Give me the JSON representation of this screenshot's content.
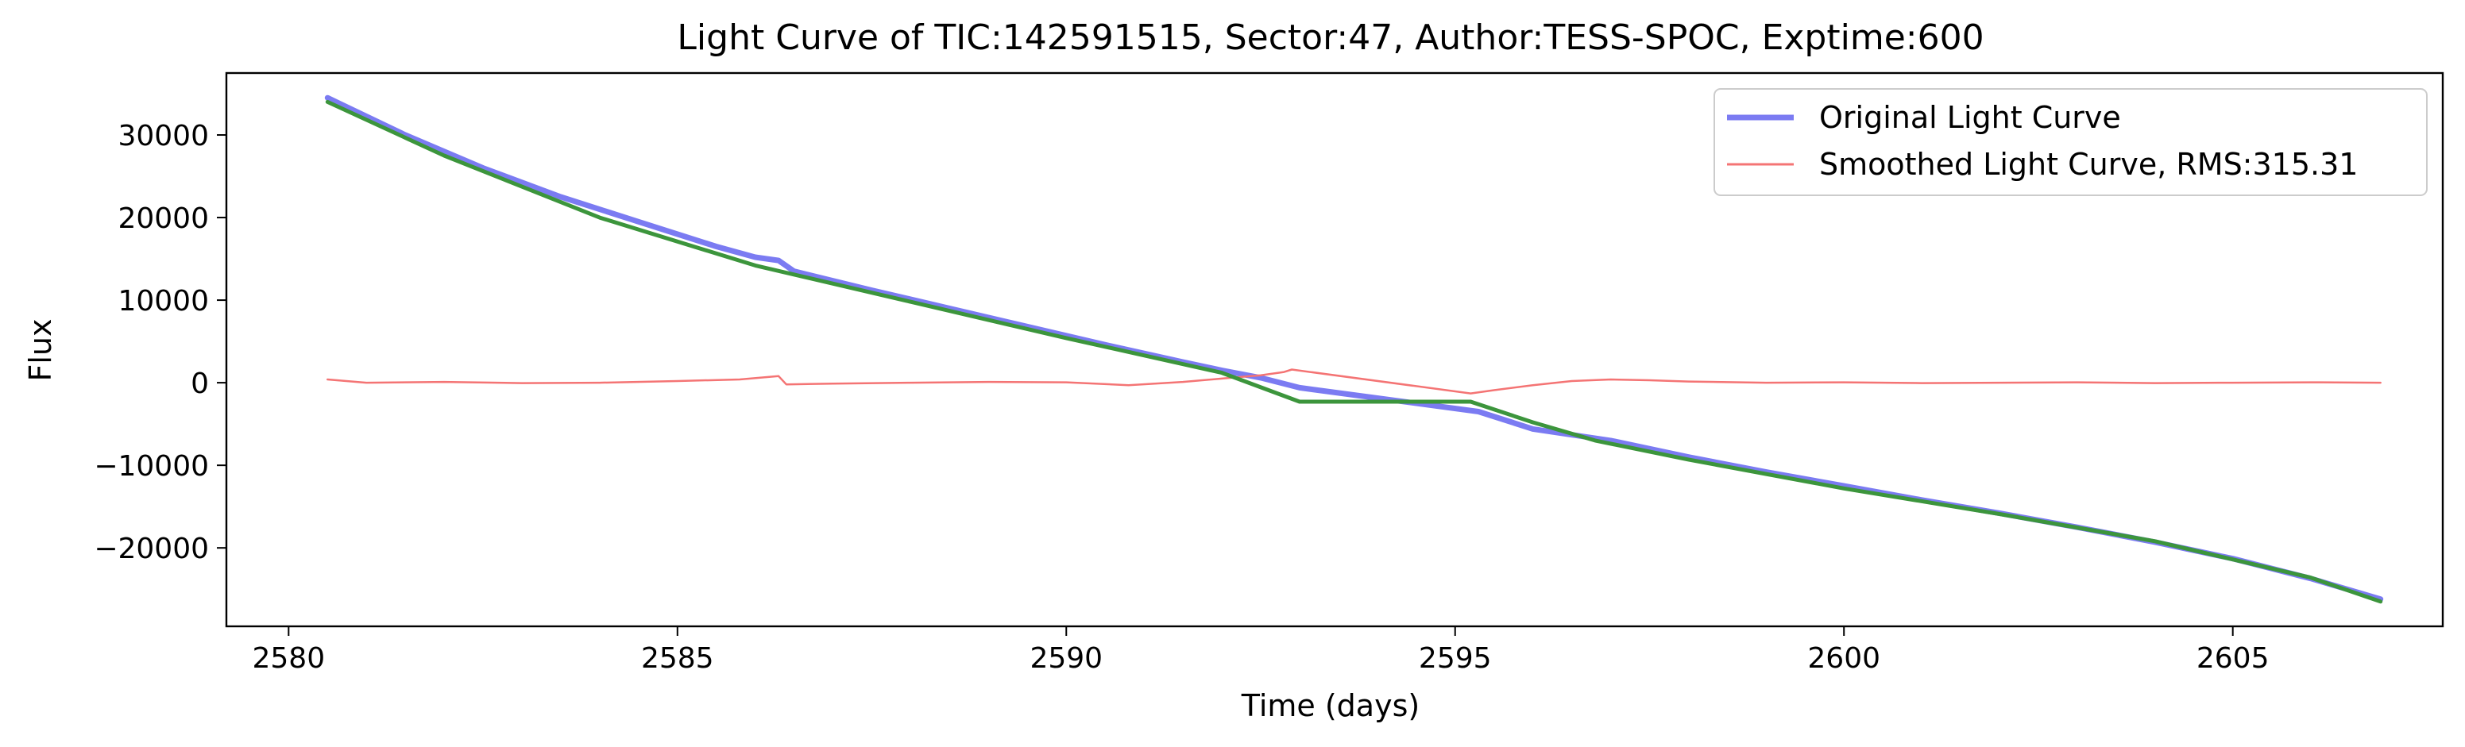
{
  "chart_data": {
    "type": "line",
    "title": "Light Curve of TIC:142591515, Sector:47, Author:TESS-SPOC, Exptime:600",
    "xlabel": "Time (days)",
    "ylabel": "Flux",
    "xlim": [
      2579.2,
      2607.7
    ],
    "ylim": [
      -29500,
      37500
    ],
    "xticks": [
      2580,
      2585,
      2590,
      2595,
      2600,
      2605
    ],
    "yticks": [
      -20000,
      -10000,
      0,
      10000,
      20000,
      30000
    ],
    "xtick_labels": [
      "2580",
      "2585",
      "2590",
      "2595",
      "2600",
      "2605"
    ],
    "ytick_labels": [
      "−20000",
      "−10000",
      "0",
      "10000",
      "20000",
      "30000"
    ],
    "grid": false,
    "legend_position": "top-right",
    "legend": {
      "original": "Original Light Curve",
      "smoothed": "Smoothed Light Curve, RMS:315.31"
    },
    "series": [
      {
        "name": "Original Light Curve",
        "color": "#7b7bf2",
        "x": [
          2580.5,
          2581.5,
          2582.5,
          2583.5,
          2584.5,
          2585.5,
          2586.0,
          2586.3,
          2586.5,
          2587.5,
          2588.5,
          2589.5,
          2590.5,
          2591.5,
          2592.0,
          2592.5,
          2593.0,
          2595.3,
          2596.0,
          2597.0,
          2598.0,
          2599.0,
          2600.0,
          2601.0,
          2602.0,
          2603.0,
          2604.0,
          2605.0,
          2606.0,
          2606.9
        ],
        "y": [
          34500,
          30000,
          26000,
          22500,
          19500,
          16500,
          15200,
          14800,
          13500,
          11200,
          9000,
          6800,
          4600,
          2500,
          1500,
          600,
          -600,
          -3500,
          -5600,
          -7000,
          -9000,
          -10800,
          -12500,
          -14200,
          -15800,
          -17500,
          -19300,
          -21300,
          -23700,
          -26200
        ]
      },
      {
        "name": "Smoothed Light Curve, RMS:315.31",
        "color": "#f47474",
        "x": [
          2580.5,
          2581.0,
          2582.0,
          2583.0,
          2584.0,
          2585.0,
          2585.8,
          2586.3,
          2586.4,
          2587.0,
          2588.0,
          2589.0,
          2590.0,
          2590.8,
          2591.5,
          2592.0,
          2592.5,
          2592.8,
          2592.9,
          2595.2,
          2595.5,
          2596.0,
          2596.5,
          2597.0,
          2597.5,
          2598.0,
          2599.0,
          2600.0,
          2601.0,
          2602.0,
          2603.0,
          2604.0,
          2605.0,
          2606.0,
          2606.9
        ],
        "y": [
          400,
          0,
          100,
          -50,
          0,
          200,
          400,
          800,
          -200,
          -100,
          0,
          100,
          50,
          -300,
          100,
          500,
          900,
          1300,
          1600,
          -1300,
          -900,
          -300,
          200,
          400,
          300,
          150,
          0,
          50,
          -50,
          0,
          50,
          -50,
          0,
          50,
          0
        ]
      },
      {
        "name": "",
        "color": "#3c953c",
        "x": [
          2580.5,
          2582.0,
          2584.0,
          2586.0,
          2588.0,
          2590.0,
          2592.0,
          2593.0,
          2595.2,
          2596.0,
          2596.8,
          2598.0,
          2600.0,
          2602.0,
          2604.0,
          2606.0,
          2606.9
        ],
        "y": [
          34000,
          27500,
          20000,
          14200,
          9800,
          5400,
          1200,
          -2300,
          -2300,
          -4800,
          -7000,
          -9300,
          -12800,
          -15900,
          -19200,
          -23600,
          -26500
        ]
      }
    ]
  }
}
